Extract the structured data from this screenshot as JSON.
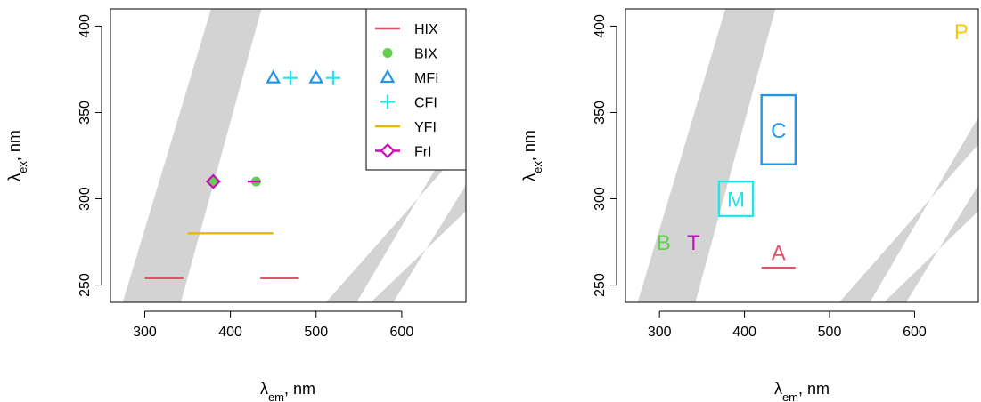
{
  "colors": {
    "band": "#D3D3D3",
    "HIX": "#DF536B",
    "BIX": "#61D04F",
    "MFI": "#2297E6",
    "CFI": "#28E2E5",
    "YFI": "#E6B800",
    "FrI": "#CD0BBC",
    "P": "#F5C710"
  },
  "chart_data": [
    {
      "type": "scatter",
      "xlabel_main": "λ",
      "xlabel_sub": "em",
      "xlabel_unit": ", nm",
      "ylabel_main": "λ",
      "ylabel_sub": "ex",
      "ylabel_unit": ", nm",
      "xlim": [
        260,
        675
      ],
      "ylim": [
        240,
        410
      ],
      "x_ticks": [
        300,
        400,
        500,
        600
      ],
      "y_ticks": [
        250,
        300,
        350,
        400
      ],
      "x_tick_labels": [
        "300",
        "400",
        "500",
        "600"
      ],
      "y_tick_labels": [
        "250",
        "300",
        "350",
        "400"
      ],
      "legend": {
        "position": "top-right",
        "entries": [
          "HIX",
          "BIX",
          "MFI",
          "CFI",
          "YFI",
          "FrI"
        ]
      },
      "series": [
        {
          "name": "HIX",
          "kind": "segments",
          "segments": [
            [
              300,
              254,
              345,
              254
            ],
            [
              435,
              254,
              480,
              254
            ]
          ]
        },
        {
          "name": "BIX",
          "kind": "points",
          "marker": "circle",
          "points": [
            [
              380,
              310
            ],
            [
              430,
              310
            ]
          ]
        },
        {
          "name": "MFI",
          "kind": "points",
          "marker": "triangle",
          "points": [
            [
              450,
              370
            ],
            [
              500,
              370
            ]
          ]
        },
        {
          "name": "CFI",
          "kind": "points",
          "marker": "plus",
          "points": [
            [
              470,
              370
            ],
            [
              520,
              370
            ]
          ]
        },
        {
          "name": "YFI",
          "kind": "segments",
          "segments": [
            [
              350,
              280,
              450,
              280
            ]
          ]
        },
        {
          "name": "FrI",
          "kind": "points",
          "marker": "diamond",
          "points": [
            [
              380,
              310
            ]
          ]
        },
        {
          "name": "FrI",
          "kind": "segments",
          "segments": [
            [
              420,
              310,
              435,
              310
            ]
          ]
        }
      ]
    },
    {
      "type": "scatter",
      "xlabel_main": "λ",
      "xlabel_sub": "em",
      "xlabel_unit": ", nm",
      "ylabel_main": "λ",
      "ylabel_sub": "ex",
      "ylabel_unit": ", nm",
      "xlim": [
        260,
        675
      ],
      "ylim": [
        240,
        410
      ],
      "x_ticks": [
        300,
        400,
        500,
        600
      ],
      "y_ticks": [
        250,
        300,
        350,
        400
      ],
      "x_tick_labels": [
        "300",
        "400",
        "500",
        "600"
      ],
      "y_tick_labels": [
        "250",
        "300",
        "350",
        "400"
      ],
      "peaks": [
        {
          "label": "B",
          "x": 305,
          "y": 275,
          "color_key": "BIX"
        },
        {
          "label": "T",
          "x": 340,
          "y": 275,
          "color_key": "FrI"
        },
        {
          "label": "A",
          "x": 420,
          "y": 269,
          "color_key": "HIX",
          "segment": [
            420,
            260,
            460,
            260
          ]
        },
        {
          "label": "M",
          "x": 390,
          "y": 300,
          "color_key": "CFI",
          "box": [
            370,
            290,
            410,
            310
          ]
        },
        {
          "label": "C",
          "x": 440,
          "y": 340,
          "color_key": "MFI",
          "box": [
            420,
            320,
            460,
            360
          ]
        },
        {
          "label": "P",
          "x": 655,
          "y": 397,
          "color_key": "P"
        }
      ]
    }
  ]
}
